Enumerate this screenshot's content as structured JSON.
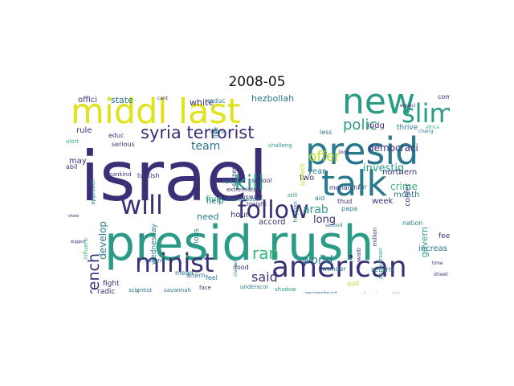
{
  "title": "2008-05",
  "palette": {
    "dark_purple": "#3b2f78",
    "indigo": "#414487",
    "blue": "#2a788e",
    "teal": "#21918c",
    "green": "#35b779",
    "yellow_green": "#bddf26",
    "yellow": "#e0e31a"
  },
  "words": [
    {
      "text": "israel",
      "color": "#3b2f78"
    },
    {
      "text": "presid rush",
      "color": "#2a9c86"
    },
    {
      "text": "middl last",
      "color": "#e0e31a"
    },
    {
      "text": "presid",
      "color": "#2a788e"
    },
    {
      "text": "new",
      "color": "#2a9c86"
    },
    {
      "text": "talk",
      "color": "#2a788e"
    },
    {
      "text": "peac",
      "color": "#35b779"
    },
    {
      "text": "american",
      "color": "#3b2f78"
    },
    {
      "text": "minist",
      "color": "#3b2f78"
    },
    {
      "text": "follow",
      "color": "#3b2f78"
    },
    {
      "text": "will",
      "color": "#3b2f78"
    },
    {
      "text": "slim",
      "color": "#2a9c86"
    },
    {
      "text": "kill",
      "color": "#2a9c86"
    },
    {
      "text": "ran",
      "color": "#35b779"
    },
    {
      "text": "syria terrorist",
      "color": "#3b2f78"
    },
    {
      "text": "french",
      "color": "#3b2f78"
    },
    {
      "text": "polic",
      "color": "#2a9c86"
    },
    {
      "text": "offer",
      "color": "#bddf26"
    },
    {
      "text": "said",
      "color": "#3b2f78"
    },
    {
      "text": "world",
      "color": "#2a788e"
    },
    {
      "text": "team",
      "color": "#2a788e"
    },
    {
      "text": "investig",
      "color": "#2a9c86"
    },
    {
      "text": "democraci",
      "color": "#3b2f78"
    },
    {
      "text": "crime",
      "color": "#35b779"
    },
    {
      "text": "arab",
      "color": "#2a9c86"
    },
    {
      "text": "long",
      "color": "#3b2f78"
    },
    {
      "text": "develop",
      "color": "#2a788e"
    },
    {
      "text": "hezbollah",
      "color": "#2a788e"
    },
    {
      "text": "state",
      "color": "#2a788e"
    },
    {
      "text": "offici",
      "color": "#3b2f78"
    },
    {
      "text": "white",
      "color": "#3b2f78"
    },
    {
      "text": "rule",
      "color": "#3b2f78"
    },
    {
      "text": "may",
      "color": "#3b2f78"
    },
    {
      "text": "five",
      "color": "#35b779"
    },
    {
      "text": "need",
      "color": "#2a788e"
    },
    {
      "text": "hour",
      "color": "#3b2f78"
    },
    {
      "text": "help",
      "color": "#2a788e"
    },
    {
      "text": "northern",
      "color": "#3b2f78"
    },
    {
      "text": "week",
      "color": "#3b2f78"
    },
    {
      "text": "month",
      "color": "#2a788e"
    },
    {
      "text": "year",
      "color": "#2a788e"
    },
    {
      "text": "two",
      "color": "#3b2f78"
    },
    {
      "text": "accord",
      "color": "#3b2f78"
    },
    {
      "text": "govern",
      "color": "#2a9c86"
    },
    {
      "text": "increas",
      "color": "#2a788e"
    },
    {
      "text": "judg",
      "color": "#3b2f78"
    },
    {
      "text": "confer",
      "color": "#3b2f78"
    },
    {
      "text": "thrive",
      "color": "#2a788e"
    },
    {
      "text": "hous",
      "color": "#2a788e"
    },
    {
      "text": "wednesday",
      "color": "#2a788e"
    },
    {
      "text": "feed",
      "color": "#3b2f78"
    },
    {
      "text": "return",
      "color": "#2a788e"
    },
    {
      "text": "fight",
      "color": "#3b2f78"
    },
    {
      "text": "radic",
      "color": "#3b2f78"
    },
    {
      "text": "mean",
      "color": "#2a788e"
    },
    {
      "text": "citizen",
      "color": "#3b2f78"
    },
    {
      "text": "speech",
      "color": "#bddf26"
    },
    {
      "text": "comment",
      "color": "#3b2f78"
    },
    {
      "text": "nation",
      "color": "#2a788e"
    },
    {
      "text": "papa",
      "color": "#2a788e"
    },
    {
      "text": "live",
      "color": "#2a788e"
    },
    {
      "text": "reduc",
      "color": "#2a788e"
    },
    {
      "text": "educ",
      "color": "#3b2f78"
    },
    {
      "text": "serious",
      "color": "#3b2f78"
    },
    {
      "text": "turkish",
      "color": "#3b2f78"
    },
    {
      "text": "religi",
      "color": "#2a788e"
    },
    {
      "text": "altern",
      "color": "#2a788e"
    },
    {
      "text": "feel",
      "color": "#2a788e"
    },
    {
      "text": "food",
      "color": "#3b2f78"
    },
    {
      "text": "school",
      "color": "#3b2f78"
    },
    {
      "text": "aid",
      "color": "#2a788e"
    },
    {
      "text": "thud",
      "color": "#3b2f78"
    },
    {
      "text": "wonder",
      "color": "#2a788e"
    },
    {
      "text": "quit",
      "color": "#bddf26"
    },
    {
      "text": "monarchi",
      "color": "#3b2f78"
    },
    {
      "text": "far",
      "color": "#2a788e"
    },
    {
      "text": "less",
      "color": "#2a788e"
    },
    {
      "text": "extremists",
      "color": "#3b2f78"
    },
    {
      "text": "come",
      "color": "#2a788e"
    },
    {
      "text": "abil",
      "color": "#3b2f78"
    },
    {
      "text": "alert",
      "color": "#35b779"
    },
    {
      "text": "influenc",
      "color": "#35b779"
    },
    {
      "text": "approach",
      "color": "#2a788e"
    },
    {
      "text": "fire",
      "color": "#2a788e"
    },
    {
      "text": "scientist",
      "color": "#2a788e"
    },
    {
      "text": "face",
      "color": "#3b2f78"
    },
    {
      "text": "underscor",
      "color": "#2a788e"
    },
    {
      "text": "reconstruct",
      "color": "#2a788e"
    },
    {
      "text": "climat",
      "color": "#2a9c86"
    },
    {
      "text": "militia",
      "color": "#2a788e"
    },
    {
      "text": "kuwaiti",
      "color": "#3b2f78"
    },
    {
      "text": "anniversari",
      "color": "#2a9c86"
    },
    {
      "text": "overshadow",
      "color": "#2a788e"
    },
    {
      "text": "unwant",
      "color": "#3b2f78"
    },
    {
      "text": "tonight",
      "color": "#3b2f78"
    },
    {
      "text": "happen",
      "color": "#2a788e"
    },
    {
      "text": "still",
      "color": "#2a9c86"
    },
    {
      "text": "challeng",
      "color": "#2a9c86"
    },
    {
      "text": "mankind",
      "color": "#3b2f78"
    },
    {
      "text": "extend",
      "color": "#2a788e"
    },
    {
      "text": "savannah",
      "color": "#2a788e"
    },
    {
      "text": "shadow",
      "color": "#2a9c86"
    },
    {
      "text": "second",
      "color": "#2a788e"
    },
    {
      "text": "africa",
      "color": "#35b779"
    },
    {
      "text": "street",
      "color": "#3b2f78"
    },
    {
      "text": "time",
      "color": "#3b2f78"
    },
    {
      "text": "chang",
      "color": "#2a788e"
    },
    {
      "text": "especi",
      "color": "#3b2f78"
    },
    {
      "text": "cant",
      "color": "#3b2f78"
    },
    {
      "text": "million",
      "color": "#3b2f78"
    },
    {
      "text": "civilian",
      "color": "#2a788e"
    },
    {
      "text": "airstrik",
      "color": "#2a788e"
    },
    {
      "text": "biggest",
      "color": "#3b2f78"
    },
    {
      "text": "show",
      "color": "#3b2f78"
    },
    {
      "text": "look",
      "color": "#3b2f78"
    }
  ]
}
